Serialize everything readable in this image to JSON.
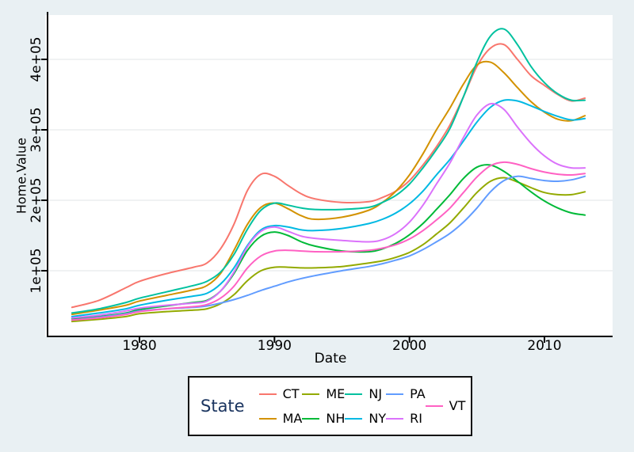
{
  "figure": {
    "bg": "#E9F0F3",
    "panel_bg": "#FFFFFF",
    "grid_color": "#ECEEEF",
    "axis_color": "#000000",
    "tick_label_color": "#000000"
  },
  "axes": {
    "x": {
      "label": "Date",
      "tick_values": [
        1980,
        1990,
        2000,
        2010
      ],
      "tick_labels": [
        "1980",
        "1990",
        "2000",
        "2010"
      ]
    },
    "y": {
      "label": "Home.Value",
      "tick_values": [
        100000,
        200000,
        300000,
        400000
      ],
      "tick_labels": [
        "1e+05",
        "2e+05",
        "3e+05",
        "4e+05"
      ]
    }
  },
  "legend": {
    "title": "State",
    "title_color": "#1B3560",
    "columns": [
      [
        "CT",
        "MA"
      ],
      [
        "ME",
        "NH"
      ],
      [
        "NJ",
        "NY"
      ],
      [
        "PA",
        "RI"
      ],
      [
        "VT"
      ]
    ]
  },
  "chart_data": {
    "type": "line",
    "title": "",
    "xlabel": "Date",
    "ylabel": "Home.Value",
    "xlim": [
      1974.5,
      2015.2
    ],
    "ylim": [
      5000,
      465000
    ],
    "grid": "horizontal-only",
    "legend_position": "bottom",
    "x": [
      1975,
      1977,
      1979,
      1980,
      1982,
      1984,
      1985,
      1986,
      1987,
      1988,
      1989,
      1990,
      1991,
      1992,
      1993,
      1995,
      1997,
      1998,
      1999,
      2000,
      2001,
      2002,
      2003,
      2004,
      2005,
      2006,
      2007,
      2008,
      2009,
      2010,
      2011,
      2012,
      2013
    ],
    "series": [
      {
        "name": "CT",
        "color": "#F8766D",
        "values": [
          48000,
          58000,
          76000,
          85000,
          96000,
          105000,
          111000,
          131000,
          166000,
          214000,
          237000,
          234000,
          221000,
          209000,
          202000,
          197000,
          198000,
          204000,
          213000,
          228000,
          250000,
          276000,
          307000,
          347000,
          390000,
          416000,
          421000,
          400000,
          377000,
          363000,
          350000,
          341000,
          345000
        ]
      },
      {
        "name": "MA",
        "color": "#D39200",
        "values": [
          38000,
          44000,
          51000,
          57000,
          65000,
          73000,
          79000,
          96000,
          129000,
          166000,
          190000,
          196000,
          188000,
          178000,
          173000,
          176000,
          186000,
          197000,
          213000,
          236000,
          266000,
          300000,
          331000,
          365000,
          392000,
          396000,
          381000,
          360000,
          340000,
          325000,
          315000,
          313000,
          320000
        ]
      },
      {
        "name": "ME",
        "color": "#93AA00",
        "values": [
          28000,
          31000,
          35000,
          39000,
          42000,
          44000,
          46000,
          53000,
          66000,
          86000,
          100000,
          105000,
          105000,
          104000,
          104000,
          106000,
          111000,
          114000,
          119000,
          126000,
          137000,
          152000,
          168000,
          189000,
          211000,
          227000,
          232000,
          226000,
          218000,
          211000,
          208000,
          208000,
          212000
        ]
      },
      {
        "name": "NH",
        "color": "#00BA38",
        "values": [
          32000,
          35000,
          40000,
          45000,
          50000,
          55000,
          58000,
          71000,
          96000,
          129000,
          149000,
          155000,
          150000,
          141000,
          135000,
          128000,
          127000,
          131000,
          139000,
          151000,
          167000,
          187000,
          208000,
          231000,
          247000,
          250000,
          241000,
          227000,
          212000,
          199000,
          189000,
          182000,
          179000
        ]
      },
      {
        "name": "NJ",
        "color": "#00C19F",
        "values": [
          40000,
          46000,
          55000,
          61000,
          70000,
          79000,
          85000,
          98000,
          123000,
          159000,
          186000,
          196000,
          193000,
          189000,
          187000,
          187000,
          190000,
          197000,
          207000,
          223000,
          246000,
          272000,
          302000,
          347000,
          396000,
          433000,
          443000,
          421000,
          390000,
          367000,
          351000,
          342000,
          342000
        ]
      },
      {
        "name": "NY",
        "color": "#00B9E3",
        "values": [
          35000,
          40000,
          46000,
          51000,
          58000,
          64000,
          68000,
          81000,
          104000,
          136000,
          158000,
          164000,
          162000,
          158000,
          157000,
          160000,
          167000,
          173000,
          182000,
          195000,
          213000,
          236000,
          258000,
          284000,
          311000,
          332000,
          342000,
          341000,
          334000,
          326000,
          319000,
          314000,
          316000
        ]
      },
      {
        "name": "PA",
        "color": "#619CFF",
        "values": [
          30000,
          34000,
          39000,
          43000,
          46000,
          48000,
          50000,
          54000,
          59000,
          65000,
          72000,
          78000,
          84000,
          89000,
          93000,
          100000,
          106000,
          110000,
          115000,
          121000,
          130000,
          141000,
          153000,
          169000,
          189000,
          212000,
          228000,
          234000,
          231000,
          228000,
          227000,
          229000,
          234000
        ]
      },
      {
        "name": "RI",
        "color": "#DB72FB",
        "values": [
          33000,
          37000,
          43000,
          47000,
          51000,
          54000,
          57000,
          71000,
          98000,
          134000,
          156000,
          162000,
          156000,
          149000,
          146000,
          143000,
          141000,
          144000,
          153000,
          169000,
          193000,
          223000,
          253000,
          289000,
          321000,
          337000,
          329000,
          304000,
          281000,
          263000,
          251000,
          246000,
          246000
        ]
      },
      {
        "name": "VT",
        "color": "#FF61C3",
        "values": [
          30000,
          33000,
          38000,
          42000,
          46000,
          49000,
          52000,
          61000,
          78000,
          104000,
          121000,
          128000,
          129000,
          128000,
          127000,
          127000,
          129000,
          132000,
          137000,
          145000,
          157000,
          172000,
          189000,
          211000,
          233000,
          249000,
          254000,
          251000,
          245000,
          240000,
          237000,
          236000,
          238000
        ]
      }
    ]
  }
}
